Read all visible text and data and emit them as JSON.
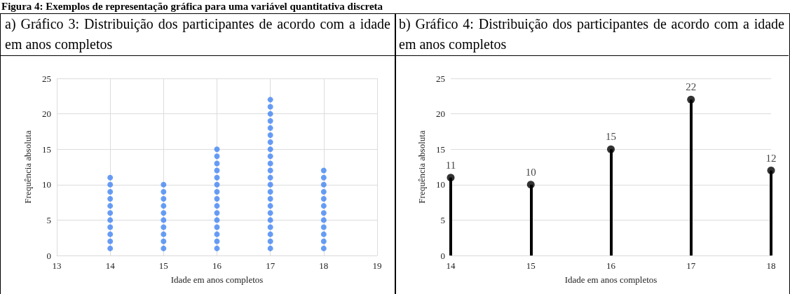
{
  "chart_data": [
    {
      "type": "scatter",
      "title": "a) Gráfico 3: Distribuição dos participantes de acordo com a idade em anos completos",
      "annotations": [
        "Figura 4: Exemplos de representação gráfica para uma variável quantitativa discreta"
      ],
      "xlabel": "Idade em anos completos",
      "ylabel": "Frequência absoluta",
      "series": [
        {
          "color": "#4285f4",
          "x": [
            14,
            14,
            14,
            14,
            14,
            14,
            14,
            14,
            14,
            14,
            14,
            15,
            15,
            15,
            15,
            15,
            15,
            15,
            15,
            15,
            15,
            16,
            16,
            16,
            16,
            16,
            16,
            16,
            16,
            16,
            16,
            16,
            16,
            16,
            16,
            16,
            17,
            17,
            17,
            17,
            17,
            17,
            17,
            17,
            17,
            17,
            17,
            17,
            17,
            17,
            17,
            17,
            17,
            17,
            17,
            17,
            17,
            17,
            18,
            18,
            18,
            18,
            18,
            18,
            18,
            18,
            18,
            18,
            18,
            18
          ],
          "values": [
            1,
            2,
            3,
            4,
            5,
            6,
            7,
            8,
            9,
            10,
            11,
            1,
            2,
            3,
            4,
            5,
            6,
            7,
            8,
            9,
            10,
            1,
            2,
            3,
            4,
            5,
            6,
            7,
            8,
            9,
            10,
            11,
            12,
            13,
            14,
            15,
            1,
            2,
            3,
            4,
            5,
            6,
            7,
            8,
            9,
            10,
            11,
            12,
            13,
            14,
            15,
            16,
            17,
            18,
            19,
            20,
            21,
            22,
            1,
            2,
            3,
            4,
            5,
            6,
            7,
            8,
            9,
            10,
            11,
            12
          ]
        }
      ],
      "xlim": [
        13,
        19
      ],
      "xticks": [
        13,
        14,
        15,
        16,
        17,
        18,
        19
      ],
      "ylim": [
        0,
        25
      ],
      "yticks": [
        0,
        5,
        10,
        15,
        20,
        25
      ],
      "grid": true,
      "marker": "circle"
    },
    {
      "type": "lollipop",
      "title": "b) Gráfico 4: Distribuição dos participantes de acordo com a idade em anos completos",
      "xlabel": "Idade em anos completos",
      "ylabel": "Frequência absoluta",
      "x": [
        14,
        15,
        16,
        17,
        18
      ],
      "values": [
        11,
        10,
        15,
        22,
        12
      ],
      "color": "#000000",
      "xlim": [
        14,
        18
      ],
      "xticks": [
        14,
        15,
        16,
        17,
        18
      ],
      "ylim": [
        0,
        25
      ],
      "yticks": [
        0,
        5,
        10,
        15,
        20,
        25
      ],
      "grid": "y",
      "marker": "circle",
      "data_labels": true
    }
  ]
}
